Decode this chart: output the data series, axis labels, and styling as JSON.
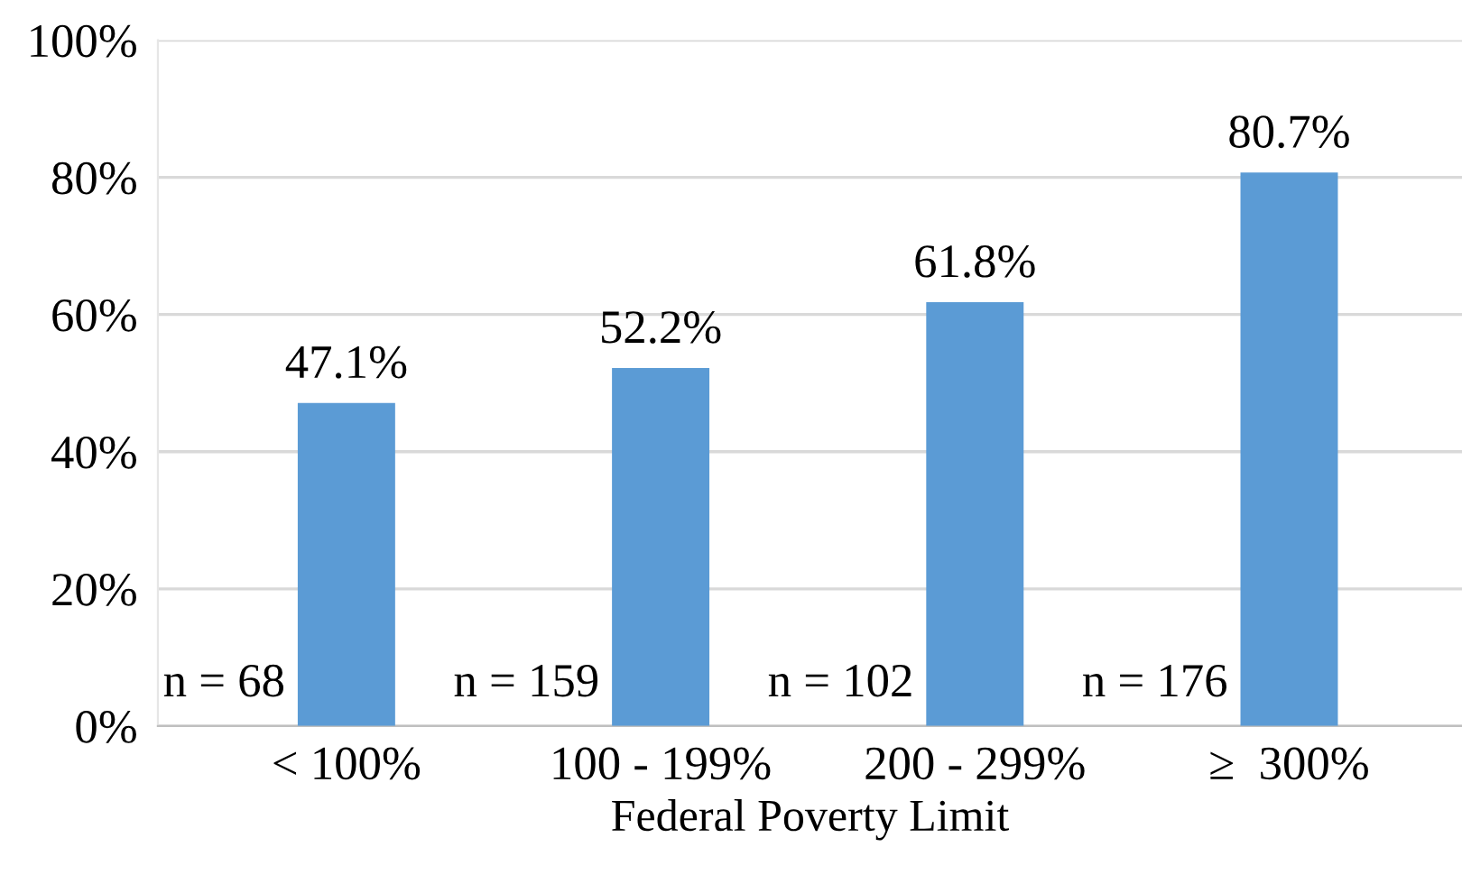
{
  "chart_data": {
    "type": "bar",
    "xlabel": "Federal Poverty Limit",
    "categories": [
      "< 100%",
      "100 - 199%",
      "200 - 299%",
      "≥  300%"
    ],
    "values": [
      47.1,
      52.2,
      61.8,
      80.7
    ],
    "color": "#5b9bd5",
    "value_labels": [
      "47.1%",
      "52.2%",
      "61.8%",
      "80.7%"
    ],
    "ylim": [
      0,
      100
    ],
    "yticks": [
      {
        "value": 0,
        "label": "0%"
      },
      {
        "value": 20,
        "label": "20%"
      },
      {
        "value": 40,
        "label": "40%"
      },
      {
        "value": 60,
        "label": "60%"
      },
      {
        "value": 80,
        "label": "80%"
      },
      {
        "value": 100,
        "label": "100%"
      }
    ],
    "grid": "y",
    "annotations": [
      "n = 68",
      "n = 159",
      "n = 102",
      "n = 176"
    ]
  }
}
